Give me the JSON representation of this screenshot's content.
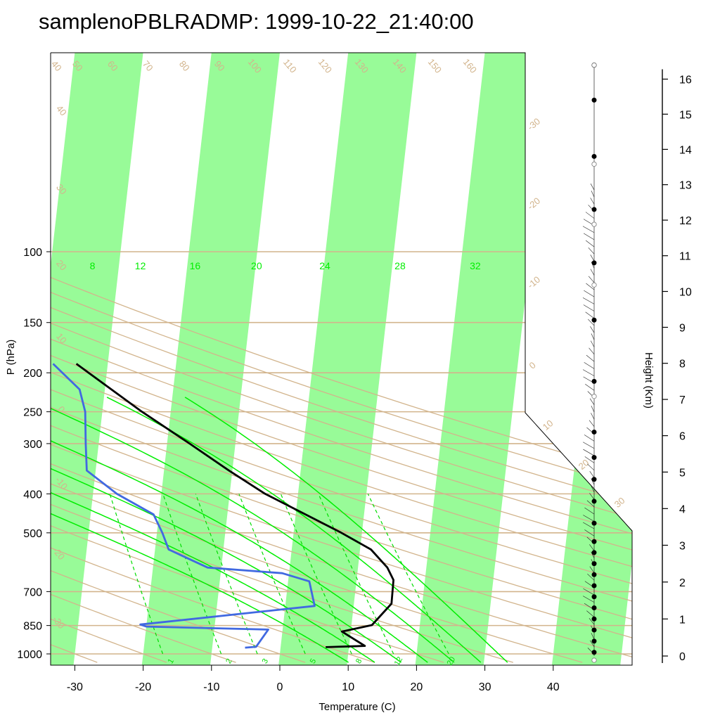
{
  "chart_data": {
    "type": "line",
    "title": "samplenoPBLRADMP: 1999-10-22_21:40:00",
    "xlabel": "Temperature (C)",
    "ylabel": "P (hPa)",
    "y2label": "Height (Km)",
    "xlim": [
      -34,
      36
    ],
    "ylim": [
      1050,
      100
    ],
    "y_scale": "log",
    "x_ticks": [
      "-30",
      "-20",
      "-10",
      "0",
      "10",
      "20",
      "30",
      "40"
    ],
    "x_tick_values": [
      -30,
      -20,
      -10,
      0,
      10,
      20,
      30,
      40
    ],
    "y_ticks": [
      "100",
      "150",
      "200",
      "250",
      "300",
      "400",
      "500",
      "700",
      "850",
      "1000"
    ],
    "y_tick_values": [
      100,
      150,
      200,
      250,
      300,
      400,
      500,
      700,
      850,
      1000
    ],
    "height_ticks": [
      "0",
      "1",
      "2",
      "3",
      "4",
      "5",
      "6",
      "7",
      "8",
      "9",
      "10",
      "11",
      "12",
      "13",
      "14",
      "15",
      "16"
    ],
    "skew": 1.0,
    "dry_adiabat_labels": [
      "-30",
      "-20",
      "-10",
      "0",
      "10",
      "20",
      "30",
      "40",
      "50",
      "60",
      "70",
      "80",
      "90",
      "100",
      "110",
      "120",
      "130",
      "140",
      "150",
      "160"
    ],
    "skewed_isotherm_labels": [
      "-30",
      "-20",
      "-10",
      "0",
      "10",
      "20",
      "30"
    ],
    "moist_adiabat_labels": [
      "8",
      "12",
      "16",
      "20",
      "24",
      "28",
      "32"
    ],
    "mixing_ratio_labels": [
      "1",
      "2",
      "3",
      "5",
      "8",
      "12",
      "20"
    ],
    "series": [
      {
        "name": "Temperature",
        "color": "#000000",
        "points": [
          {
            "p": 962,
            "t": 6.6
          },
          {
            "p": 955,
            "t": 12.3
          },
          {
            "p": 880,
            "t": 8.7
          },
          {
            "p": 848,
            "t": 13.0
          },
          {
            "p": 750,
            "t": 15.5
          },
          {
            "p": 655,
            "t": 15.4
          },
          {
            "p": 610,
            "t": 14.3
          },
          {
            "p": 550,
            "t": 11.6
          },
          {
            "p": 500,
            "t": 7.0
          },
          {
            "p": 400,
            "t": -4.8
          },
          {
            "p": 350,
            "t": -10.5
          },
          {
            "p": 300,
            "t": -16.7
          },
          {
            "p": 250,
            "t": -24.2
          },
          {
            "p": 190,
            "t": -34.6
          }
        ]
      },
      {
        "name": "Dew point",
        "color": "#4169e1",
        "points": [
          {
            "p": 965,
            "t": -5.2
          },
          {
            "p": 960,
            "t": -3.6
          },
          {
            "p": 870,
            "t": -2.1
          },
          {
            "p": 855,
            "t": -20.0
          },
          {
            "p": 845,
            "t": -20.9
          },
          {
            "p": 760,
            "t": 4.3
          },
          {
            "p": 660,
            "t": 3.1
          },
          {
            "p": 630,
            "t": -1.0
          },
          {
            "p": 610,
            "t": -12.0
          },
          {
            "p": 550,
            "t": -18.0
          },
          {
            "p": 500,
            "t": -19.2
          },
          {
            "p": 450,
            "t": -20.8
          },
          {
            "p": 400,
            "t": -26.5
          },
          {
            "p": 350,
            "t": -31.3
          },
          {
            "p": 300,
            "t": -31.9
          },
          {
            "p": 250,
            "t": -32.5
          },
          {
            "p": 220,
            "t": -33.7
          },
          {
            "p": 190,
            "t": -38.0
          }
        ]
      }
    ],
    "wind_barb_heights_km": [
      0.1,
      0.4,
      0.7,
      1.0,
      1.3,
      1.6,
      1.9,
      2.2,
      2.5,
      2.8,
      3.1,
      3.6,
      4.2,
      4.8,
      5.4,
      6.1,
      7.5,
      9.2,
      10.8,
      12.3,
      13.8,
      15.4
    ]
  }
}
